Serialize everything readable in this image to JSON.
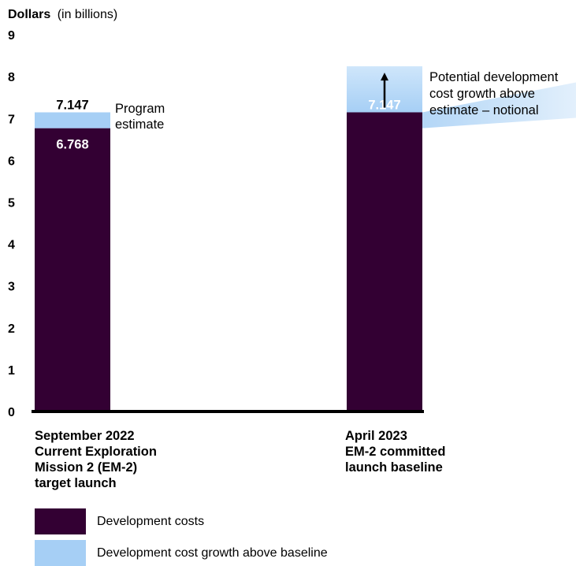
{
  "chart_data": {
    "type": "bar",
    "stacked": true,
    "ylabel": "Dollars",
    "ylabel_suffix": "(in billions)",
    "ylim": [
      0,
      9
    ],
    "yticks": [
      "0",
      "1",
      "2",
      "3",
      "4",
      "5",
      "6",
      "7",
      "8",
      "9"
    ],
    "categories": [
      [
        "September 2022",
        "Current Exploration",
        "Mission 2 (EM-2)",
        "target launch"
      ],
      [
        "April 2023",
        "EM-2 committed",
        "launch baseline"
      ]
    ],
    "series": [
      {
        "name": "Development costs",
        "color": "#330033",
        "values": [
          6.768,
          7.147
        ]
      },
      {
        "name": "Development cost growth above baseline",
        "color": "#a6cff5",
        "values": [
          0.379,
          1.1
        ]
      }
    ],
    "data_labels": {
      "bar1_base": "6.768",
      "bar1_total": "7.147",
      "bar2_base": "7.147"
    },
    "annotations": {
      "program_estimate": [
        "Program",
        "estimate"
      ],
      "potential_growth": [
        "Potential development",
        "cost growth above",
        "estimate – notional"
      ]
    },
    "legend": [
      "Development costs",
      "Development cost growth above baseline"
    ],
    "legend_position": "bottom-left"
  }
}
